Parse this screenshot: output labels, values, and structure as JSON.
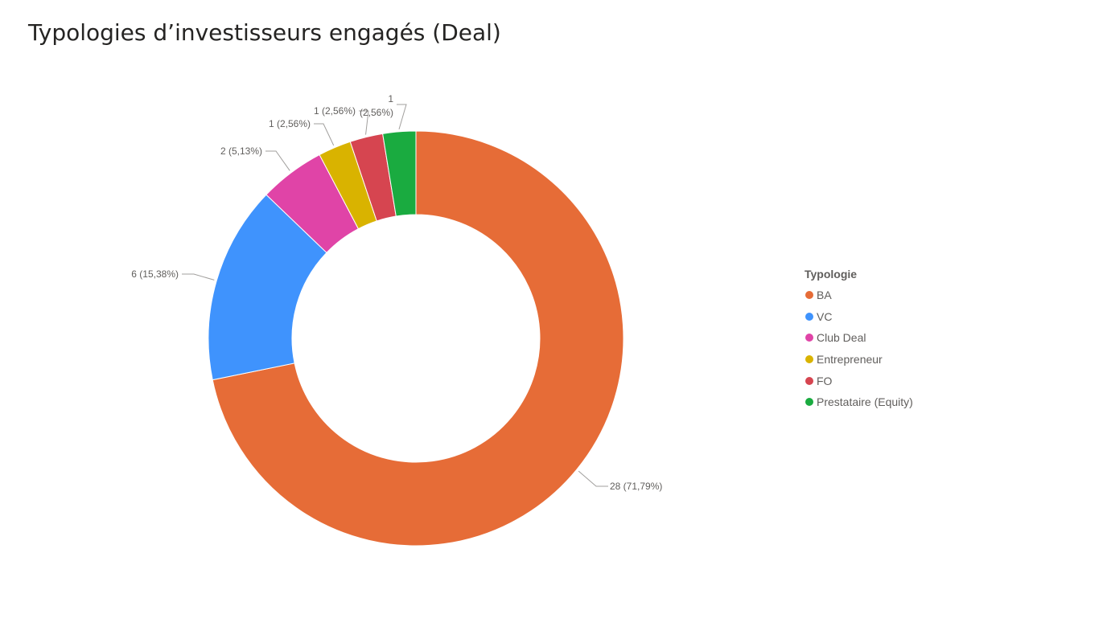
{
  "chart_data": {
    "type": "pie",
    "title": "Typologies d’investisseurs engagés (Deal)",
    "legend_title": "Typologie",
    "legend_position": "right",
    "categories": [
      "BA",
      "VC",
      "Club Deal",
      "Entrepreneur",
      "FO",
      "Prestataire (Equity)"
    ],
    "values": [
      28,
      6,
      2,
      1,
      1,
      1
    ],
    "colors": [
      "#E66C37",
      "#3F93FD",
      "#E044A7",
      "#D9B300",
      "#D64550",
      "#1AAB40"
    ],
    "labels": [
      "28 (71,79%)",
      "6 (15,38%)",
      "2 (5,13%)",
      "1 (2,56%)",
      "1 (2,56%)",
      "1"
    ],
    "label_extra": [
      "",
      "",
      "",
      "",
      "",
      "(2,56%)"
    ]
  }
}
